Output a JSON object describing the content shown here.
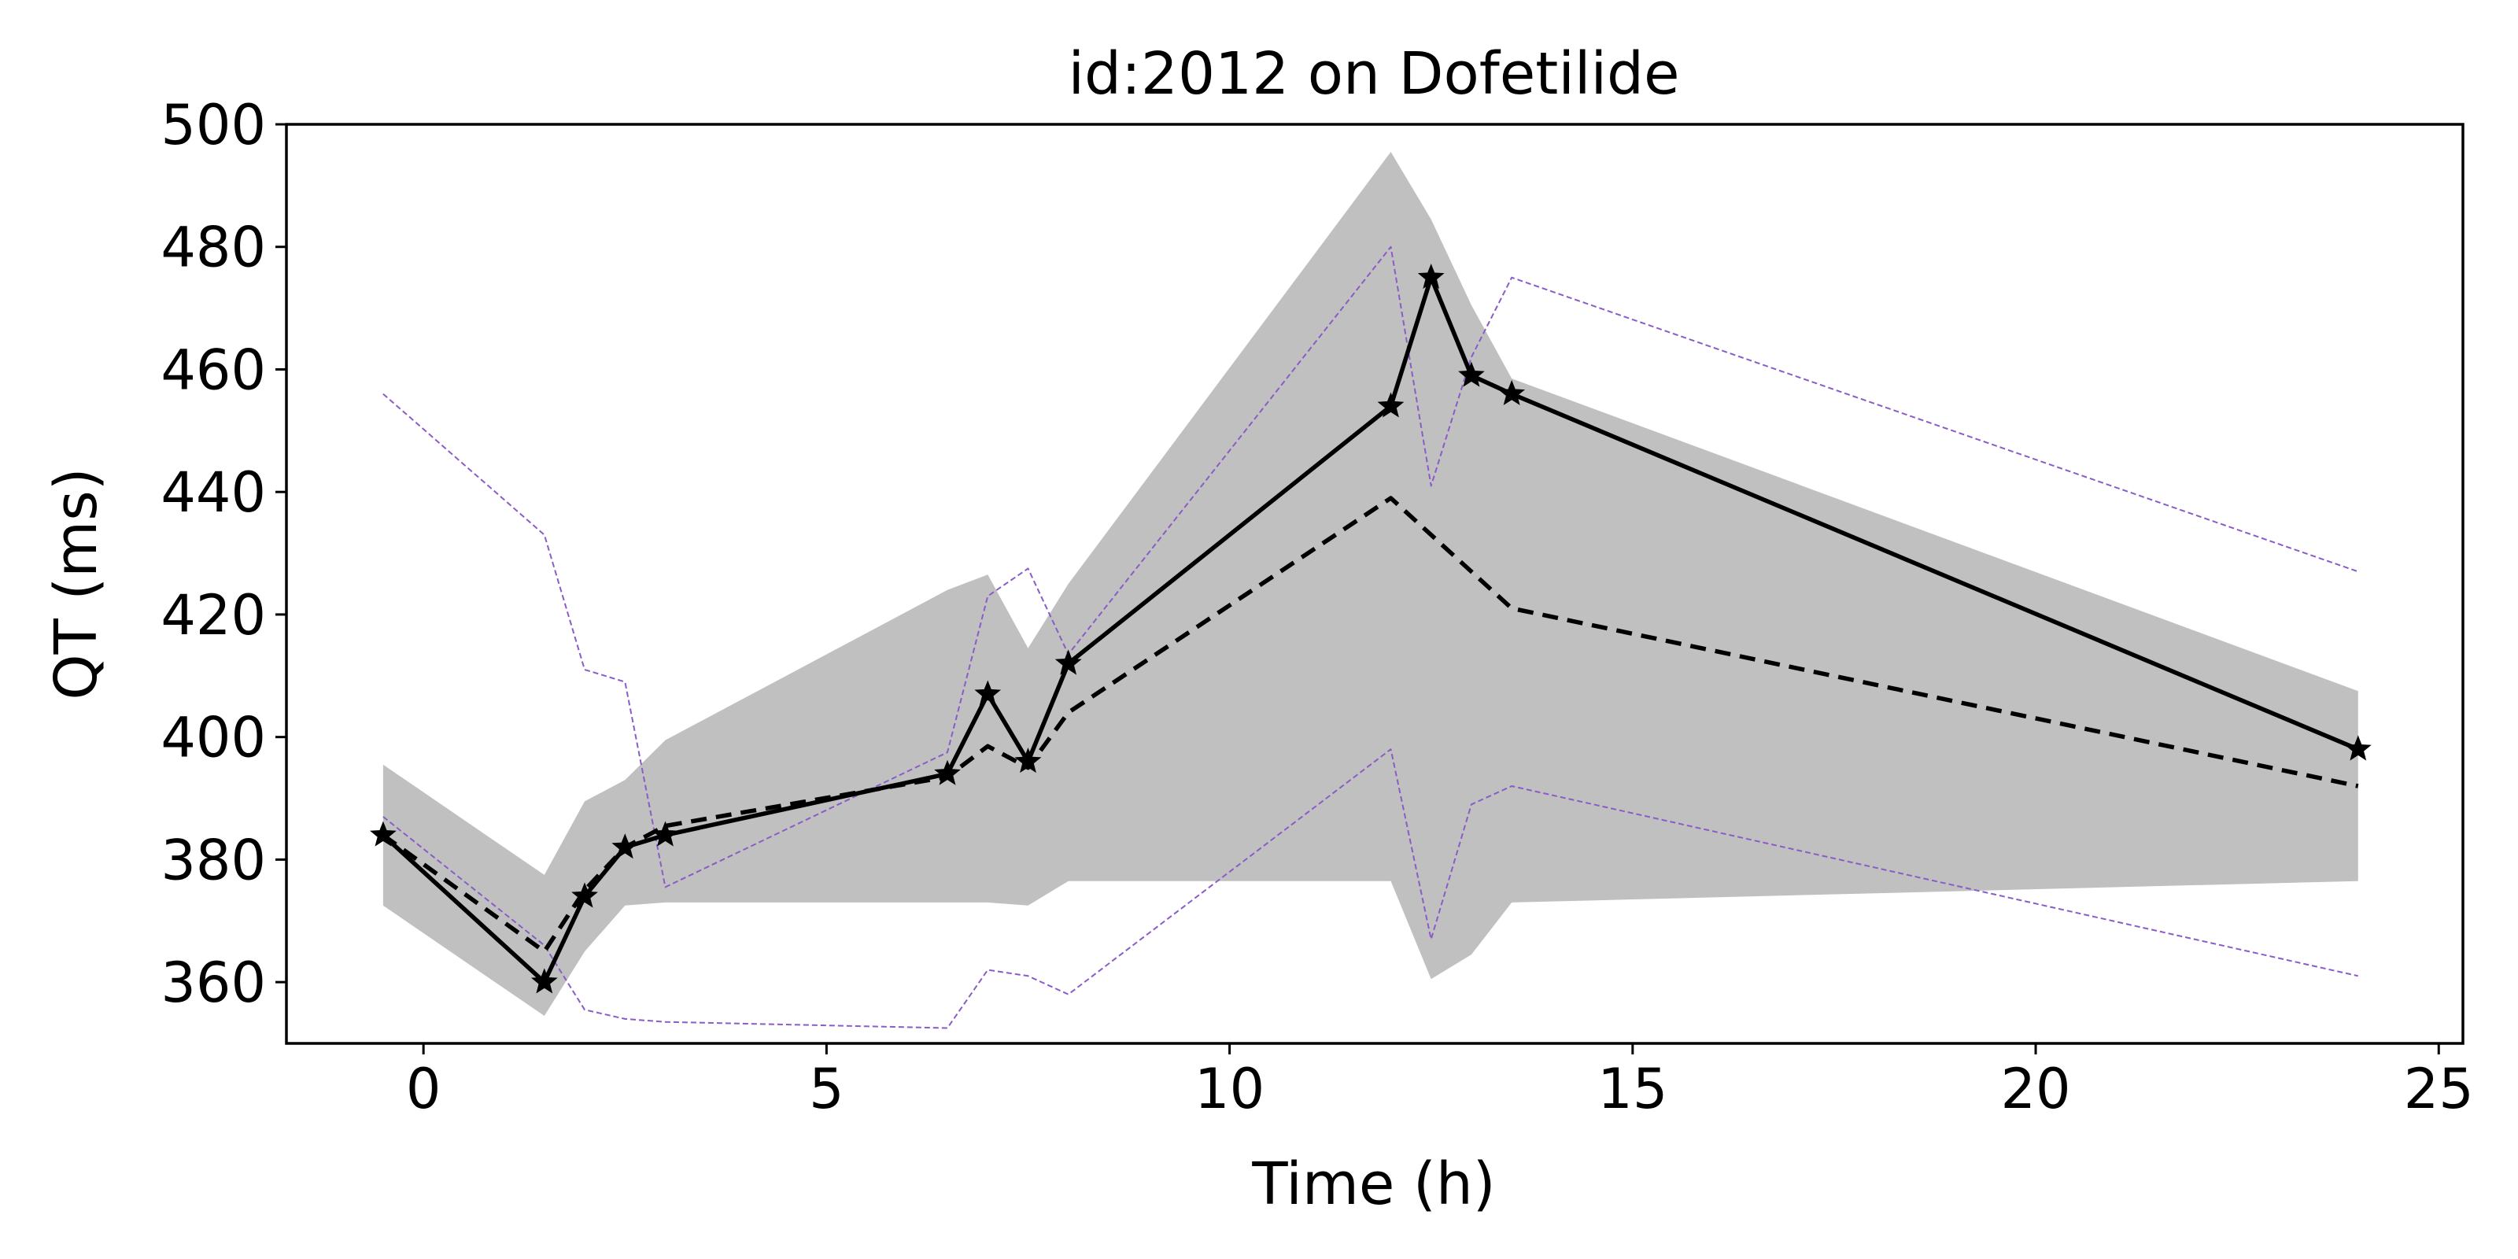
{
  "chart_data": {
    "type": "line",
    "title": "id:2012 on Dofetilide",
    "xlabel": "Time (h)",
    "ylabel": "QT (ms)",
    "xlim": [
      -1.7,
      25.3
    ],
    "ylim": [
      350,
      500
    ],
    "xticks": [
      0,
      5,
      10,
      15,
      20,
      25
    ],
    "yticks": [
      360,
      380,
      400,
      420,
      440,
      460,
      480,
      500
    ],
    "grid": false,
    "legend": "none",
    "x": [
      -0.5,
      1.5,
      2,
      2.5,
      3,
      6.5,
      7,
      7.5,
      8,
      12,
      12.5,
      13,
      13.5,
      24
    ],
    "series": [
      {
        "style": "solid-star",
        "color": "#000000",
        "values": [
          384,
          360,
          374,
          382,
          384,
          394,
          407,
          396,
          412,
          454,
          475,
          459,
          456,
          398
        ]
      },
      {
        "style": "dashed",
        "color": "#000000",
        "values": [
          384,
          365,
          375,
          382,
          385.5,
          393.5,
          398.5,
          395,
          404,
          439,
          433,
          427,
          421,
          392
        ]
      },
      {
        "style": "thin-dashed-upper",
        "color": "#8a5cc7",
        "values": [
          456,
          433,
          411,
          409,
          375.5,
          397.5,
          423,
          427.5,
          413.5,
          480,
          441,
          462,
          475,
          427
        ]
      },
      {
        "style": "thin-dashed-lower",
        "color": "#8a5cc7",
        "values": [
          387,
          366,
          355.5,
          354,
          353.5,
          352.5,
          362,
          361,
          358,
          398,
          367,
          389,
          392,
          361
        ]
      }
    ],
    "band": {
      "color": "#c0c0c0",
      "lower": [
        372.5,
        354.5,
        365,
        372.5,
        373,
        373,
        373,
        372.5,
        376.5,
        376.5,
        360.5,
        364.5,
        373,
        376.5
      ],
      "upper": [
        395.5,
        377.5,
        389.5,
        393,
        399.5,
        424,
        426.5,
        414.5,
        425,
        495.5,
        484.5,
        470.5,
        458.5,
        407.5
      ]
    }
  }
}
